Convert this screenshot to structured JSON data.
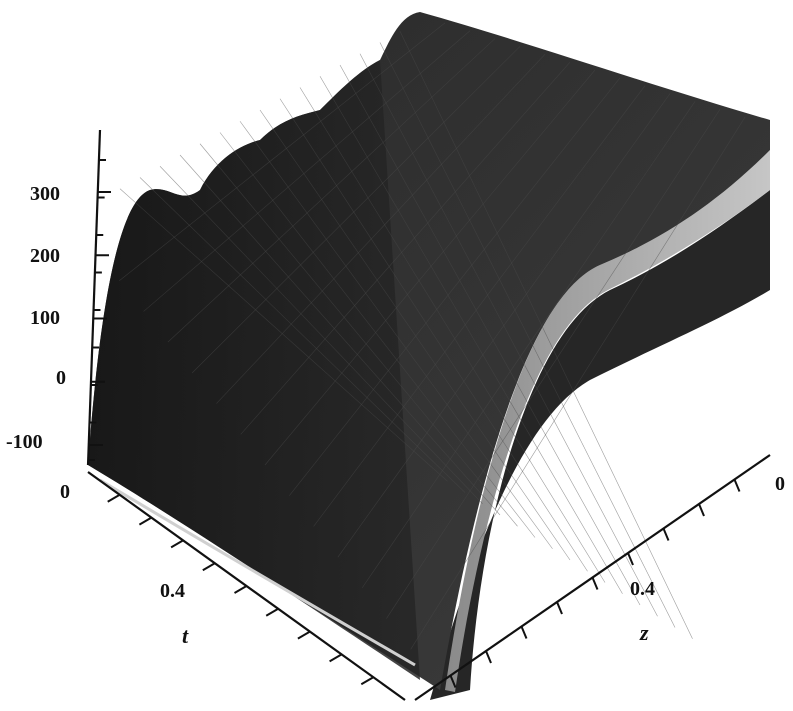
{
  "chart_data": {
    "type": "surface",
    "title": "",
    "xlabel": "t",
    "ylabel": "z",
    "zlabel": "",
    "z_ticks": [
      "-100",
      "0",
      "100",
      "200",
      "300"
    ],
    "t_ticks": [
      "0",
      "0.4"
    ],
    "z_axis_ticks": [
      "0",
      "0.4"
    ],
    "zlim": [
      -150,
      350
    ],
    "series": [
      {
        "values": [
          -100,
          300,
          290,
          320,
          310,
          340,
          330,
          355,
          350
        ]
      },
      {
        "values": [
          -110,
          240,
          250,
          260,
          265,
          270,
          275,
          278,
          280
        ]
      },
      {
        "values": [
          -120,
          220,
          228,
          236,
          242,
          248,
          252,
          256,
          258
        ]
      }
    ],
    "colors": {
      "surface_dark": "#1b1b1b",
      "surface_mid": "#3a3a3a",
      "surface_light": "#b8b8b8"
    }
  }
}
